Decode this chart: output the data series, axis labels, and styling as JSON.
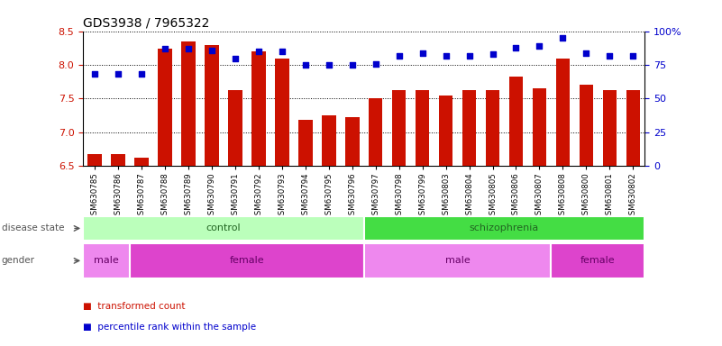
{
  "title": "GDS3938 / 7965322",
  "samples": [
    "GSM630785",
    "GSM630786",
    "GSM630787",
    "GSM630788",
    "GSM630789",
    "GSM630790",
    "GSM630791",
    "GSM630792",
    "GSM630793",
    "GSM630794",
    "GSM630795",
    "GSM630796",
    "GSM630797",
    "GSM630798",
    "GSM630799",
    "GSM630803",
    "GSM630804",
    "GSM630805",
    "GSM630806",
    "GSM630807",
    "GSM630808",
    "GSM630800",
    "GSM630801",
    "GSM630802"
  ],
  "bar_values": [
    6.68,
    6.68,
    6.63,
    8.24,
    8.35,
    8.3,
    7.63,
    8.2,
    8.1,
    7.19,
    7.25,
    7.22,
    7.5,
    7.63,
    7.63,
    7.55,
    7.63,
    7.63,
    7.82,
    7.65,
    8.09,
    7.7,
    7.63,
    7.63
  ],
  "percentile_values": [
    68,
    68,
    68,
    87,
    87,
    86,
    80,
    85,
    85,
    75,
    75,
    75,
    76,
    82,
    84,
    82,
    82,
    83,
    88,
    89,
    95,
    84,
    82,
    82
  ],
  "ylim_left": [
    6.5,
    8.5
  ],
  "ylim_right": [
    0,
    100
  ],
  "bar_color": "#cc1100",
  "dot_color": "#0000cc",
  "disease_state_groups": [
    {
      "label": "control",
      "start": 0,
      "end": 12,
      "color": "#bbffbb"
    },
    {
      "label": "schizophrenia",
      "start": 12,
      "end": 24,
      "color": "#44dd44"
    }
  ],
  "gender_groups": [
    {
      "label": "male",
      "start": 0,
      "end": 2,
      "color": "#ee88ee"
    },
    {
      "label": "female",
      "start": 2,
      "end": 12,
      "color": "#dd44cc"
    },
    {
      "label": "male",
      "start": 12,
      "end": 20,
      "color": "#ee88ee"
    },
    {
      "label": "female",
      "start": 20,
      "end": 24,
      "color": "#dd44cc"
    }
  ],
  "legend_items": [
    {
      "label": "transformed count",
      "color": "#cc1100"
    },
    {
      "label": "percentile rank within the sample",
      "color": "#0000cc"
    }
  ],
  "yticks_left": [
    6.5,
    7.0,
    7.5,
    8.0,
    8.5
  ],
  "yticks_right": [
    0,
    25,
    50,
    75,
    100
  ],
  "disease_label": "disease state",
  "gender_label": "gender",
  "disease_label_color": "#555555",
  "gender_label_color": "#555555"
}
